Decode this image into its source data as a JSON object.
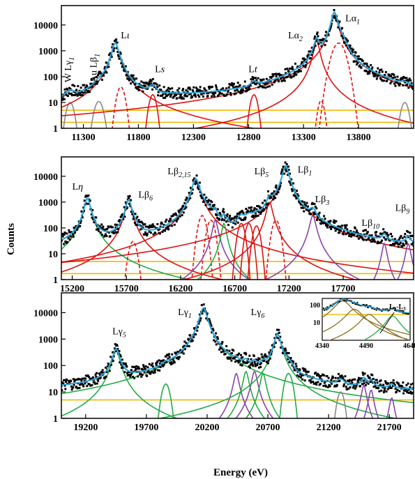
{
  "chart_data": [
    {
      "type": "line",
      "panel": "top",
      "xlim": [
        11100,
        14300
      ],
      "ylim_log10": [
        0,
        4.75
      ],
      "xticks": [
        "11300",
        "11800",
        "12300",
        "12800",
        "13300",
        "13800"
      ],
      "xtick_values": [
        11300,
        11800,
        12300,
        12800,
        13300,
        13800
      ],
      "yticks": [
        "1",
        "10",
        "100",
        "1000",
        "10000"
      ],
      "ytick_values": [
        1,
        10,
        100,
        1000,
        10000
      ],
      "background": 1.2,
      "flat_levels": [
        5,
        1.7
      ],
      "peaks": [
        {
          "label": "W Lγ1",
          "center": 11180,
          "height": 10,
          "width": 22,
          "color": "#888888",
          "style": "gauss"
        },
        {
          "label": "Au Lβ1",
          "center": 11440,
          "height": 11,
          "width": 25,
          "color": "#888888",
          "style": "gauss"
        },
        {
          "label": "Lι",
          "center": 11590,
          "height": 2000,
          "width": 28,
          "color": "#dd1111",
          "style": "lorentz"
        },
        {
          "label": "",
          "center": 11640,
          "height": 40,
          "width": 22,
          "color": "#dd1111",
          "style": "dashed"
        },
        {
          "label": "Ls",
          "center": 11930,
          "height": 20,
          "width": 20,
          "color": "#dd1111",
          "style": "gauss"
        },
        {
          "label": "Lt",
          "center": 12850,
          "height": 20,
          "width": 20,
          "color": "#dd1111",
          "style": "gauss"
        },
        {
          "label": "Lα2",
          "center": 13420,
          "height": 2500,
          "width": 22,
          "color": "#dd1111",
          "style": "lorentz"
        },
        {
          "label": "",
          "center": 13460,
          "height": 12,
          "width": 18,
          "color": "#dd1111",
          "style": "dashed"
        },
        {
          "label": "Lα1",
          "center": 13580,
          "height": 30000,
          "width": 25,
          "color": "#dd1111",
          "style": "lorentz"
        },
        {
          "label": "",
          "center": 13620,
          "height": 2000,
          "width": 35,
          "color": "#dd1111",
          "style": "dashed"
        },
        {
          "label": "",
          "center": 14220,
          "height": 10,
          "width": 22,
          "color": "#888888",
          "style": "gauss"
        }
      ],
      "labels": [
        {
          "text": "W Lγ",
          "sub": "1",
          "x": 11190,
          "y": 60,
          "rotate": true
        },
        {
          "text": "Au Lβ",
          "sub": "1",
          "x": 11420,
          "y": 60,
          "rotate": true
        },
        {
          "text": "L",
          "italic": "ι",
          "x": 11640,
          "y": 3000
        },
        {
          "text": "L",
          "italic": "s",
          "x": 11950,
          "y": 150
        },
        {
          "text": "L",
          "italic": "t",
          "x": 12800,
          "y": 150
        },
        {
          "text": "Lα",
          "sub": "2",
          "x": 13160,
          "y": 3000
        },
        {
          "text": "Lα",
          "sub": "1",
          "x": 13680,
          "y": 14000
        }
      ]
    },
    {
      "type": "line",
      "panel": "middle",
      "xlim": [
        15100,
        18350
      ],
      "ylim_log10": [
        0,
        4.75
      ],
      "xticks": [
        "15200",
        "15700",
        "16200",
        "16700",
        "17200",
        "17700"
      ],
      "xtick_values": [
        15200,
        15700,
        16200,
        16700,
        17200,
        17700
      ],
      "yticks": [
        "1",
        "10",
        "100",
        "1000",
        "10000"
      ],
      "ytick_values": [
        1,
        10,
        100,
        1000,
        10000
      ],
      "background": 1.2,
      "flat_levels": [
        5,
        1.7
      ],
      "peaks": [
        {
          "label": "Lη",
          "center": 15340,
          "height": 1400,
          "width": 25,
          "color": "#22aa44",
          "style": "lorentz"
        },
        {
          "label": "Lβ6",
          "center": 15720,
          "height": 1200,
          "width": 25,
          "color": "#dd1111",
          "style": "lorentz"
        },
        {
          "label": "",
          "center": 15760,
          "height": 30,
          "width": 22,
          "color": "#dd1111",
          "style": "dashed"
        },
        {
          "label": "Lβ2,15",
          "center": 16340,
          "height": 8000,
          "width": 30,
          "color": "#dd1111",
          "style": "lorentz"
        },
        {
          "label": "",
          "center": 16400,
          "height": 300,
          "width": 22,
          "color": "#dd1111",
          "style": "dashed"
        },
        {
          "label": "",
          "center": 16480,
          "height": 200,
          "width": 22,
          "color": "#dd1111",
          "style": "dashed"
        },
        {
          "label": "",
          "center": 16520,
          "height": 200,
          "width": 22,
          "color": "#8844aa",
          "style": "lorentz"
        },
        {
          "label": "",
          "center": 16600,
          "height": 150,
          "width": 20,
          "color": "#22aa44",
          "style": "lorentz"
        },
        {
          "label": "",
          "center": 16760,
          "height": 150,
          "width": 20,
          "color": "#dd1111",
          "style": "gauss"
        },
        {
          "label": "",
          "center": 16830,
          "height": 150,
          "width": 20,
          "color": "#dd1111",
          "style": "gauss"
        },
        {
          "label": "",
          "center": 16900,
          "height": 120,
          "width": 20,
          "color": "#dd1111",
          "style": "gauss"
        },
        {
          "label": "Lβ5",
          "center": 17020,
          "height": 1000,
          "width": 25,
          "color": "#dd1111",
          "style": "lorentz"
        },
        {
          "label": "",
          "center": 17080,
          "height": 200,
          "width": 22,
          "color": "#dd1111",
          "style": "dashed"
        },
        {
          "label": "Lβ1",
          "center": 17170,
          "height": 25000,
          "width": 28,
          "color": "#dd1111",
          "style": "lorentz"
        },
        {
          "label": "Lβ3",
          "center": 17420,
          "height": 300,
          "width": 25,
          "color": "#8844aa",
          "style": "lorentz"
        },
        {
          "label": "Lβ10",
          "center": 18080,
          "height": 25,
          "width": 20,
          "color": "#8844aa",
          "style": "lorentz"
        },
        {
          "label": "Lβ9",
          "center": 18300,
          "height": 25,
          "width": 20,
          "color": "#8844aa",
          "style": "lorentz"
        }
      ],
      "labels": [
        {
          "text": "L",
          "italic": "η",
          "x": 15200,
          "y": 3000
        },
        {
          "text": "Lβ",
          "sub": "6",
          "x": 15810,
          "y": 1500
        },
        {
          "text": "Lβ",
          "sub": "2,15",
          "x": 16080,
          "y": 12000
        },
        {
          "text": "Lβ",
          "sub": "5",
          "x": 16880,
          "y": 12000
        },
        {
          "text": "Lβ",
          "sub": "1",
          "x": 17280,
          "y": 14000
        },
        {
          "text": "Lβ",
          "sub": "3",
          "x": 17440,
          "y": 1000
        },
        {
          "text": "Lβ",
          "sub": "10",
          "x": 17870,
          "y": 120
        },
        {
          "text": "Lβ",
          "sub": "9",
          "x": 18180,
          "y": 450
        }
      ]
    },
    {
      "type": "line",
      "panel": "bottom",
      "xlim": [
        19000,
        21900
      ],
      "ylim_log10": [
        0,
        4.75
      ],
      "xticks": [
        "19200",
        "19700",
        "20200",
        "20700",
        "21200",
        "21700"
      ],
      "xtick_values": [
        19200,
        19700,
        20200,
        20700,
        21200,
        21700
      ],
      "yticks": [
        "1",
        "10",
        "100",
        "1000",
        "10000"
      ],
      "ytick_values": [
        1,
        10,
        100,
        1000,
        10000
      ],
      "background": 1.2,
      "flat_levels": [
        5
      ],
      "xlabel": "Energy (eV)",
      "peaks": [
        {
          "label": "Lγ5",
          "center": 19450,
          "height": 400,
          "width": 25,
          "color": "#22aa44",
          "style": "lorentz"
        },
        {
          "label": "",
          "center": 19860,
          "height": 20,
          "width": 20,
          "color": "#22aa44",
          "style": "gauss"
        },
        {
          "label": "Lγ1",
          "center": 20170,
          "height": 15000,
          "width": 28,
          "color": "#22aa44",
          "style": "lorentz"
        },
        {
          "label": "",
          "center": 20440,
          "height": 50,
          "width": 20,
          "color": "#8844aa",
          "style": "lorentz"
        },
        {
          "label": "",
          "center": 20520,
          "height": 60,
          "width": 20,
          "color": "#22aa44",
          "style": "lorentz"
        },
        {
          "label": "",
          "center": 20590,
          "height": 60,
          "width": 20,
          "color": "#8844aa",
          "style": "lorentz"
        },
        {
          "label": "",
          "center": 20660,
          "height": 50,
          "width": 20,
          "color": "#22aa44",
          "style": "lorentz"
        },
        {
          "label": "Lγ6",
          "center": 20780,
          "height": 1500,
          "width": 25,
          "color": "#22aa44",
          "style": "lorentz"
        },
        {
          "label": "",
          "center": 20870,
          "height": 50,
          "width": 20,
          "color": "#22aa44",
          "style": "gauss"
        },
        {
          "label": "",
          "center": 21300,
          "height": 10,
          "width": 18,
          "color": "#888888",
          "style": "gauss"
        },
        {
          "label": "",
          "center": 21490,
          "height": 18,
          "width": 18,
          "color": "#8844aa",
          "style": "lorentz"
        },
        {
          "label": "",
          "center": 21550,
          "height": 12,
          "width": 18,
          "color": "#8844aa",
          "style": "lorentz"
        },
        {
          "label": "",
          "center": 21720,
          "height": 6,
          "width": 18,
          "color": "#8844aa",
          "style": "lorentz"
        }
      ],
      "labels": [
        {
          "text": "Lγ",
          "sub": "5",
          "x": 19420,
          "y": 1500
        },
        {
          "text": "Lγ",
          "sub": "1",
          "x": 19960,
          "y": 8000
        },
        {
          "text": "Lγ",
          "sub": "6",
          "x": 20560,
          "y": 8000
        }
      ],
      "inset": {
        "xlim": [
          4340,
          4640
        ],
        "ylim_log10": [
          0,
          2.4
        ],
        "xticks": [
          "4340",
          "4490",
          "4640"
        ],
        "xtick_values": [
          4340,
          4490,
          4640
        ],
        "yticks": [
          "10",
          "100"
        ],
        "ytick_values": [
          10,
          100
        ],
        "annotation_main": "L",
        "annotation_sub1": "1",
        "annotation_mid": "-L",
        "annotation_sub2": "3"
      }
    }
  ],
  "axes": {
    "ylabel": "Counts",
    "xlabel": "Energy (eV)"
  }
}
